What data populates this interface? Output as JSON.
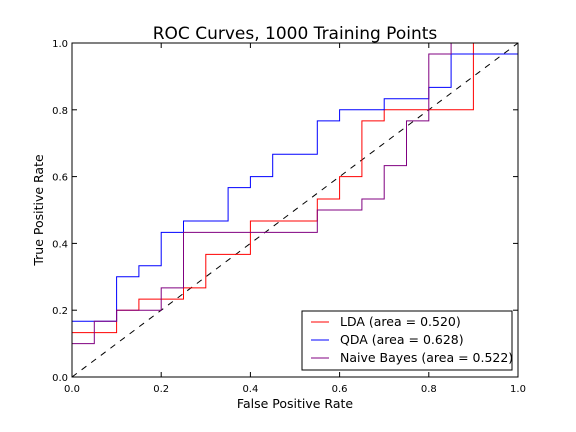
{
  "chart_data": {
    "type": "line",
    "title": "ROC Curves, 1000 Training Points",
    "xlabel": "False Positive Rate",
    "ylabel": "True Positive Rate",
    "xlim": [
      0.0,
      1.0
    ],
    "ylim": [
      0.0,
      1.0
    ],
    "x_ticks": [
      "0.0",
      "0.2",
      "0.4",
      "0.6",
      "0.8",
      "1.0"
    ],
    "y_ticks": [
      "0.0",
      "0.2",
      "0.4",
      "0.6",
      "0.8",
      "1.0"
    ],
    "grid": false,
    "legend_position": "lower-right",
    "reference_line": {
      "x": [
        0.0,
        1.0
      ],
      "y": [
        0.0,
        1.0
      ],
      "style": "dashed",
      "color": "#000000"
    },
    "series": [
      {
        "name": "LDA (area = 0.520)",
        "color": "#ff0000",
        "x": [
          0.0,
          0.0,
          0.1,
          0.1,
          0.15,
          0.15,
          0.25,
          0.25,
          0.3,
          0.3,
          0.4,
          0.4,
          0.55,
          0.55,
          0.6,
          0.6,
          0.65,
          0.65,
          0.7,
          0.7,
          0.9,
          0.9,
          1.0
        ],
        "y": [
          0.0,
          0.133,
          0.133,
          0.2,
          0.2,
          0.233,
          0.233,
          0.267,
          0.267,
          0.367,
          0.367,
          0.467,
          0.467,
          0.533,
          0.533,
          0.6,
          0.6,
          0.767,
          0.767,
          0.8,
          0.8,
          1.0,
          1.0
        ]
      },
      {
        "name": "QDA (area = 0.628)",
        "color": "#0000ff",
        "x": [
          0.0,
          0.0,
          0.1,
          0.1,
          0.15,
          0.15,
          0.2,
          0.2,
          0.25,
          0.25,
          0.35,
          0.35,
          0.4,
          0.4,
          0.45,
          0.45,
          0.55,
          0.55,
          0.6,
          0.6,
          0.7,
          0.7,
          0.8,
          0.8,
          0.85,
          0.85,
          0.9,
          0.9,
          1.0
        ],
        "y": [
          0.0,
          0.167,
          0.167,
          0.3,
          0.3,
          0.333,
          0.333,
          0.433,
          0.433,
          0.467,
          0.467,
          0.567,
          0.567,
          0.6,
          0.6,
          0.667,
          0.667,
          0.767,
          0.767,
          0.8,
          0.8,
          0.833,
          0.833,
          0.867,
          0.867,
          0.967,
          0.967,
          0.967,
          0.967
        ]
      },
      {
        "name": "Naive Bayes (area = 0.522)",
        "color": "#800080",
        "x": [
          0.0,
          0.0,
          0.05,
          0.05,
          0.1,
          0.1,
          0.2,
          0.2,
          0.25,
          0.25,
          0.55,
          0.55,
          0.65,
          0.65,
          0.7,
          0.7,
          0.75,
          0.75,
          0.8,
          0.8,
          0.85,
          0.85,
          1.0
        ],
        "y": [
          0.0,
          0.1,
          0.1,
          0.167,
          0.167,
          0.2,
          0.2,
          0.267,
          0.267,
          0.433,
          0.433,
          0.5,
          0.5,
          0.533,
          0.533,
          0.633,
          0.633,
          0.767,
          0.767,
          0.967,
          0.967,
          1.0,
          1.0
        ]
      }
    ]
  }
}
